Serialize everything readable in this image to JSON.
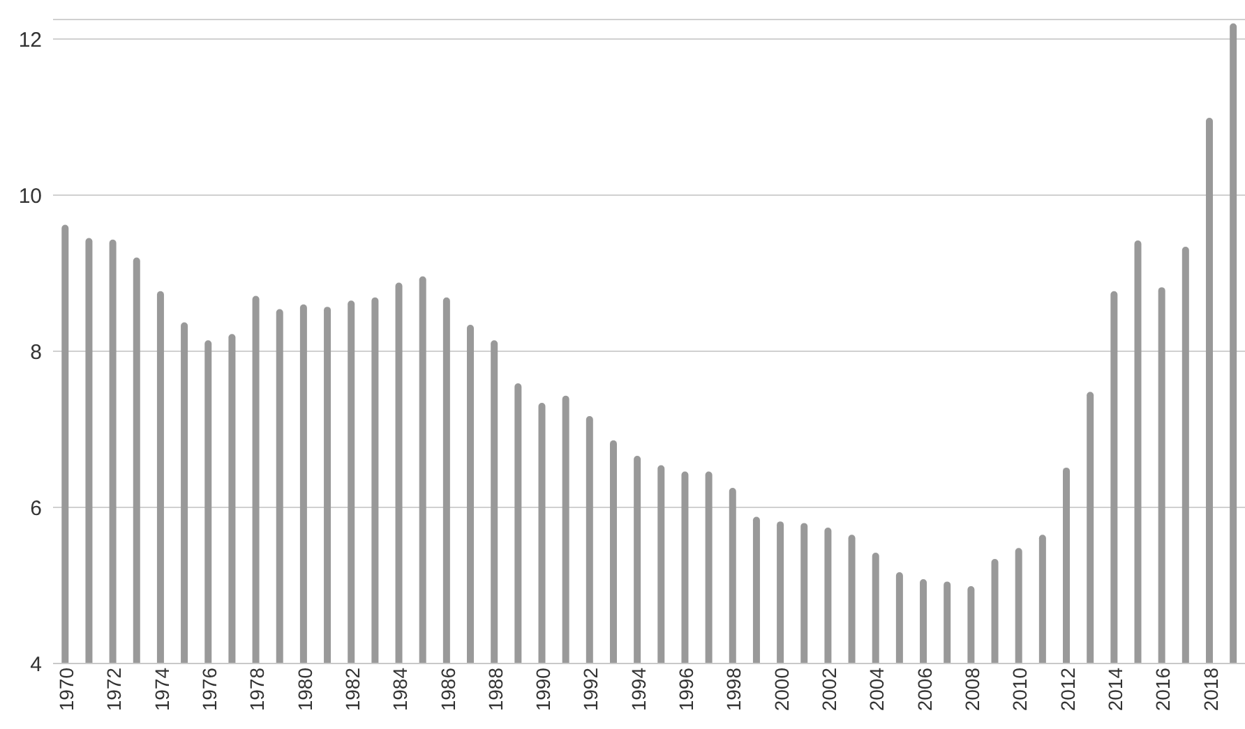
{
  "chart_data": {
    "type": "bar",
    "categories": [
      "1970",
      null,
      "1972",
      null,
      "1974",
      null,
      "1976",
      null,
      "1978",
      null,
      "1980",
      null,
      "1982",
      null,
      "1984",
      null,
      "1986",
      null,
      "1988",
      null,
      "1990",
      null,
      "1992",
      null,
      "1994",
      null,
      "1996",
      null,
      "1998",
      null,
      "2000",
      null,
      "2002",
      null,
      "2004",
      null,
      "2006",
      null,
      "2008",
      null,
      "2010",
      null,
      "2012",
      null,
      "2014",
      null,
      "2016",
      null,
      "2018",
      null
    ],
    "values": [
      9.62,
      9.45,
      9.43,
      9.2,
      8.77,
      8.37,
      8.14,
      8.22,
      8.71,
      8.54,
      8.6,
      8.57,
      8.65,
      8.69,
      8.88,
      8.96,
      8.69,
      8.34,
      8.14,
      7.59,
      7.34,
      7.43,
      7.17,
      6.86,
      6.66,
      6.54,
      6.46,
      6.46,
      6.25,
      5.88,
      5.82,
      5.8,
      5.74,
      5.65,
      5.42,
      5.17,
      5.08,
      5.05,
      4.99,
      5.34,
      5.48,
      5.65,
      6.51,
      7.48,
      8.77,
      9.42,
      8.82,
      9.34,
      10.99,
      12.2
    ],
    "color": "#999999",
    "ylim": [
      4,
      12.25
    ],
    "yticks": [
      4,
      6,
      8,
      10,
      12
    ],
    "grid": "y"
  }
}
